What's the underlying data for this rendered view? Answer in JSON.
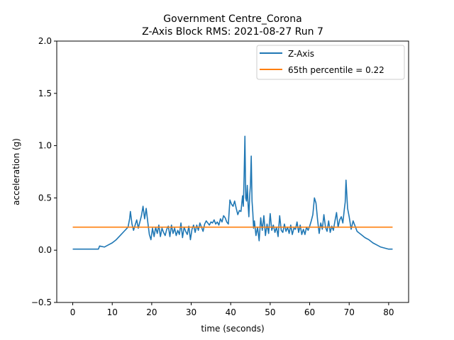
{
  "chart_data": {
    "type": "line",
    "title": "Government Centre_Corona",
    "subtitle": "Z-Axis Block RMS: 2021-08-27 Run 7",
    "xlabel": "time (seconds)",
    "ylabel": "acceleration (g)",
    "xlim": [
      -4.05,
      85.05
    ],
    "ylim": [
      -0.5,
      2.0
    ],
    "xticks": [
      0,
      10,
      20,
      30,
      40,
      50,
      60,
      70,
      80
    ],
    "xtick_labels": [
      "0",
      "10",
      "20",
      "30",
      "40",
      "50",
      "60",
      "70",
      "80"
    ],
    "yticks": [
      -0.5,
      0.0,
      0.5,
      1.0,
      1.5,
      2.0
    ],
    "ytick_labels": [
      "−0.5",
      "0.0",
      "0.5",
      "1.0",
      "1.5",
      "2.0"
    ],
    "grid": false,
    "legend_position": "top-right",
    "series": [
      {
        "name": "Z-Axis",
        "color": "#1f77b4",
        "x": [
          0,
          6.5,
          6.8,
          8,
          9,
          10,
          11,
          12,
          13,
          14,
          14.4,
          14.6,
          15,
          15.4,
          15.8,
          16.2,
          16.6,
          17,
          17.4,
          17.8,
          18.2,
          18.6,
          19,
          19.4,
          19.8,
          20.2,
          20.6,
          21,
          21.4,
          21.8,
          22.2,
          22.6,
          23,
          23.4,
          23.8,
          24.2,
          24.6,
          25,
          25.4,
          25.8,
          26.2,
          26.6,
          27,
          27.4,
          27.8,
          28.2,
          28.6,
          29,
          29.4,
          29.8,
          30.2,
          30.6,
          31,
          31.4,
          31.8,
          32.2,
          32.6,
          33,
          33.4,
          33.8,
          34.2,
          34.6,
          35,
          35.4,
          35.8,
          36.2,
          36.6,
          37,
          37.4,
          37.8,
          38.2,
          38.6,
          39,
          39.4,
          39.8,
          40.2,
          40.6,
          41,
          41.4,
          41.8,
          42.2,
          42.6,
          43,
          43.2,
          43.4,
          43.6,
          43.8,
          44,
          44.2,
          44.4,
          44.6,
          44.8,
          45,
          45.2,
          45.4,
          45.6,
          45.8,
          46,
          46.4,
          46.8,
          47.2,
          47.6,
          48,
          48.4,
          48.8,
          49.2,
          49.6,
          50,
          50.4,
          50.8,
          51.2,
          51.6,
          52,
          52.4,
          52.8,
          53.2,
          53.6,
          54,
          54.4,
          54.8,
          55.2,
          55.6,
          56,
          56.4,
          56.8,
          57.2,
          57.6,
          58,
          58.4,
          58.8,
          59.2,
          59.6,
          60,
          60.4,
          60.8,
          61.2,
          61.6,
          62,
          62.4,
          62.8,
          63.2,
          63.6,
          64,
          64.4,
          64.8,
          65.2,
          65.6,
          66,
          66.4,
          66.8,
          67.2,
          67.6,
          68,
          68.4,
          68.8,
          69,
          69.2,
          69.6,
          70,
          70.5,
          71,
          72,
          73,
          74,
          75,
          76,
          77,
          78,
          79,
          80,
          81
        ],
        "y": [
          0.01,
          0.01,
          0.04,
          0.03,
          0.05,
          0.07,
          0.1,
          0.14,
          0.18,
          0.22,
          0.3,
          0.37,
          0.25,
          0.19,
          0.24,
          0.29,
          0.21,
          0.27,
          0.33,
          0.42,
          0.3,
          0.4,
          0.27,
          0.15,
          0.1,
          0.21,
          0.13,
          0.22,
          0.16,
          0.24,
          0.13,
          0.21,
          0.17,
          0.14,
          0.2,
          0.23,
          0.13,
          0.24,
          0.16,
          0.21,
          0.14,
          0.19,
          0.15,
          0.26,
          0.12,
          0.22,
          0.18,
          0.15,
          0.23,
          0.1,
          0.2,
          0.24,
          0.17,
          0.24,
          0.19,
          0.26,
          0.22,
          0.18,
          0.25,
          0.28,
          0.26,
          0.24,
          0.27,
          0.26,
          0.29,
          0.25,
          0.27,
          0.24,
          0.3,
          0.27,
          0.33,
          0.31,
          0.27,
          0.25,
          0.48,
          0.44,
          0.42,
          0.47,
          0.4,
          0.34,
          0.38,
          0.37,
          0.52,
          0.42,
          0.71,
          1.09,
          0.5,
          0.47,
          0.62,
          0.44,
          0.32,
          0.52,
          0.62,
          0.9,
          0.47,
          0.36,
          0.21,
          0.28,
          0.14,
          0.22,
          0.09,
          0.31,
          0.19,
          0.33,
          0.14,
          0.25,
          0.16,
          0.35,
          0.19,
          0.24,
          0.17,
          0.22,
          0.13,
          0.33,
          0.19,
          0.17,
          0.25,
          0.18,
          0.22,
          0.16,
          0.24,
          0.15,
          0.21,
          0.2,
          0.27,
          0.17,
          0.24,
          0.15,
          0.2,
          0.15,
          0.22,
          0.19,
          0.23,
          0.28,
          0.34,
          0.5,
          0.45,
          0.29,
          0.16,
          0.26,
          0.2,
          0.34,
          0.22,
          0.18,
          0.28,
          0.17,
          0.23,
          0.19,
          0.28,
          0.36,
          0.22,
          0.29,
          0.32,
          0.26,
          0.4,
          0.46,
          0.67,
          0.4,
          0.32,
          0.2,
          0.28,
          0.18,
          0.15,
          0.12,
          0.1,
          0.07,
          0.05,
          0.03,
          0.02,
          0.01,
          0.01
        ]
      },
      {
        "name": "65th percentile = 0.22",
        "color": "#ff7f0e",
        "x": [
          0,
          81
        ],
        "y": [
          0.22,
          0.22
        ]
      }
    ]
  }
}
